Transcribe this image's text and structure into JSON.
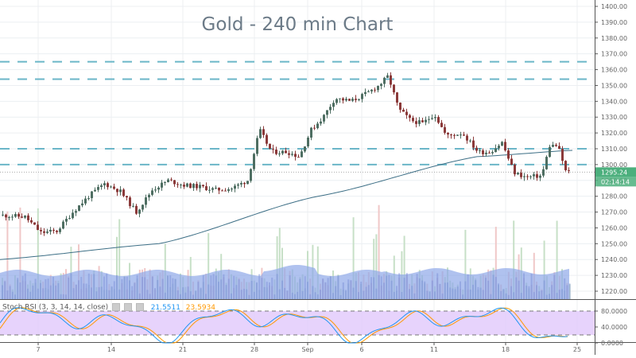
{
  "header": {
    "title": "Gold - 240 min Chart"
  },
  "price_axis": {
    "ticks": [
      "1400.00",
      "1390.00",
      "1380.00",
      "1370.00",
      "1360.00",
      "1350.00",
      "1340.00",
      "1330.00",
      "1320.00",
      "1310.00",
      "1300.00",
      "1290.00",
      "1280.00",
      "1270.00",
      "1260.00",
      "1250.00",
      "1240.00",
      "1230.00",
      "1220.00"
    ],
    "last_price": "1295.24",
    "countdown": "02:14:14",
    "badge_color": "#4caf7d"
  },
  "time_axis": {
    "labels": [
      "7",
      "14",
      "21",
      "28",
      "Sep",
      "6",
      "11",
      "18",
      "25"
    ]
  },
  "indicator": {
    "name": "Stoch RSI (3, 3, 14, 14, close)",
    "k_value": "21.5511",
    "d_value": "23.5934",
    "ticks": [
      "80.0000",
      "40.0000",
      "0.0000"
    ],
    "k_color": "#2196f3",
    "d_color": "#ff9800",
    "band_color": "#e1c8fb"
  },
  "colors": {
    "up": "#4e6e62",
    "down": "#8b3a3a",
    "level_line": "#6bb6c8",
    "ma_line": "#3d6f86",
    "volume_up": "#c7e0c7",
    "volume_down": "#f0c8c8",
    "volume_ma_fill": "#8ea8e8"
  },
  "chart_data": {
    "type": "candlestick",
    "title": "Gold - 240 min Chart",
    "xlabel": "",
    "ylabel": "",
    "ylim": [
      1220,
      1400
    ],
    "x_ticks": [
      "7",
      "14",
      "21",
      "28",
      "Sep",
      "6",
      "11",
      "18",
      "25"
    ],
    "horizontal_levels": [
      1365,
      1354,
      1310,
      1300
    ],
    "moving_average_approx": [
      [
        0,
        1240
      ],
      [
        200,
        1250
      ],
      [
        400,
        1280
      ],
      [
        600,
        1305
      ],
      [
        720,
        1309
      ]
    ],
    "last_price": 1295.24,
    "price_path_approx": [
      [
        0,
        1268
      ],
      [
        30,
        1267
      ],
      [
        50,
        1257
      ],
      [
        70,
        1258
      ],
      [
        90,
        1270
      ],
      [
        110,
        1280
      ],
      [
        130,
        1288
      ],
      [
        150,
        1283
      ],
      [
        170,
        1270
      ],
      [
        190,
        1284
      ],
      [
        210,
        1290
      ],
      [
        230,
        1287
      ],
      [
        250,
        1286
      ],
      [
        270,
        1284
      ],
      [
        290,
        1285
      ],
      [
        310,
        1290
      ],
      [
        325,
        1322
      ],
      [
        340,
        1308
      ],
      [
        360,
        1308
      ],
      [
        375,
        1305
      ],
      [
        390,
        1322
      ],
      [
        405,
        1330
      ],
      [
        420,
        1342
      ],
      [
        440,
        1340
      ],
      [
        460,
        1345
      ],
      [
        475,
        1350
      ],
      [
        487,
        1356
      ],
      [
        500,
        1335
      ],
      [
        515,
        1328
      ],
      [
        530,
        1326
      ],
      [
        545,
        1332
      ],
      [
        560,
        1318
      ],
      [
        580,
        1320
      ],
      [
        600,
        1308
      ],
      [
        615,
        1308
      ],
      [
        630,
        1314
      ],
      [
        645,
        1295
      ],
      [
        660,
        1292
      ],
      [
        680,
        1293
      ],
      [
        690,
        1312
      ],
      [
        700,
        1312
      ],
      [
        710,
        1296
      ],
      [
        715,
        1295
      ]
    ],
    "indicator": {
      "name": "Stoch RSI (3, 3, 14, 14, close)",
      "k": 21.5511,
      "d": 23.5934,
      "ylim": [
        0,
        100
      ],
      "bands": [
        20,
        80
      ]
    }
  }
}
